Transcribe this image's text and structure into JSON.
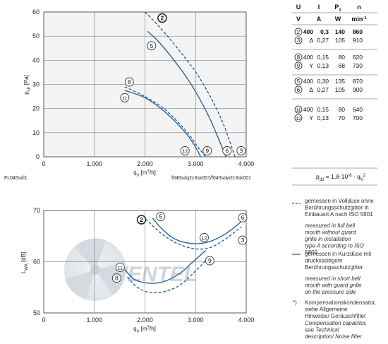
{
  "table": {
    "headers": [
      "U",
      "I",
      "P1",
      "n"
    ],
    "header_sub": [
      "1"
    ],
    "units": [
      "V",
      "A",
      "W",
      "min-1"
    ],
    "rows": [
      {
        "ids": [
          "2",
          "3"
        ],
        "U": [
          "400",
          "Δ"
        ],
        "I": [
          "0,3",
          "0,27"
        ],
        "P": [
          "140",
          "105"
        ],
        "n": [
          "860",
          "910"
        ],
        "bold_first": true
      },
      {
        "ids": [
          "8",
          "9"
        ],
        "U": [
          "400",
          "Y"
        ],
        "I": [
          "0,15",
          "0,13"
        ],
        "P": [
          "80",
          "68"
        ],
        "n": [
          "620",
          "730"
        ],
        "bold_first": false
      },
      {
        "ids": [
          "5",
          "6"
        ],
        "U": [
          "400",
          "Δ"
        ],
        "I": [
          "0,30",
          "0,27"
        ],
        "P": [
          "135",
          "105"
        ],
        "n": [
          "870",
          "900"
        ],
        "bold_first": false
      },
      {
        "ids": [
          "11",
          "12"
        ],
        "U": [
          "400",
          "Y"
        ],
        "I": [
          "0,15",
          "0,13"
        ],
        "P": [
          "80",
          "70"
        ],
        "n": [
          "640",
          "700"
        ],
        "bold_first": false
      }
    ],
    "formula": "pd2 = 1,8·10-6 · qv2"
  },
  "top_chart": {
    "codes_left": "FL045sdi1",
    "codes_right": "f045sdq2c3sk001/f045sdw2c3sk001"
  },
  "legend": {
    "dashed_de": "gemessen in Volldüse ohne Berührungsschutzgitter in Einbauart A nach ISO 5801",
    "dashed_en": "measured in full bell mouth without guard grille in installation type A according to ISO 5801",
    "solid_de": "gemessen in Kurzdüse mit drucksseitigem Berührungsschutzgitter",
    "solid_en": "measured in short bell mouth with guard grille on the pressure side",
    "note_mark": "*)",
    "note_de": "Kompensationskondensator, siehe Allgemeine Hinweise/ Geräuschfilter",
    "note_en": "Compensation capacitor, see Technical description/ Noise filter"
  },
  "chart_data": [
    {
      "type": "line",
      "name": "pressure",
      "xlabel": "qv [m3/h]",
      "ylabel": "psF [Pa]",
      "xlim": [
        0,
        4000
      ],
      "ylim": [
        0,
        60
      ],
      "xticks": [
        "0",
        "1.000",
        "2.000",
        "3.000",
        "4.000"
      ],
      "yticks": [
        "0",
        "10",
        "20",
        "30",
        "40",
        "50",
        "60"
      ],
      "grid": true,
      "series": [
        {
          "name": "2",
          "style": "dashed",
          "x": [
            2000,
            2300,
            2700,
            3100,
            3500,
            3780
          ],
          "y": [
            60,
            53.5,
            43.5,
            32,
            16,
            0
          ]
        },
        {
          "name": "5",
          "style": "solid",
          "x": [
            2050,
            2300,
            2700,
            3000,
            3300,
            3600
          ],
          "y": [
            52,
            47,
            36.5,
            27,
            15,
            0
          ]
        },
        {
          "name": "8",
          "style": "dashed",
          "x": [
            1600,
            2000,
            2400,
            2800,
            3050,
            3200
          ],
          "y": [
            29,
            25,
            19.5,
            11,
            4,
            0
          ]
        },
        {
          "name": "11",
          "style": "solid",
          "x": [
            1600,
            2000,
            2400,
            2800,
            3000,
            3100
          ],
          "y": [
            27.5,
            24.5,
            18.5,
            10,
            4,
            0
          ]
        }
      ],
      "labels": [
        {
          "id": "2",
          "x": 2340,
          "y": 57.5,
          "bold": true
        },
        {
          "id": "5",
          "x": 2130,
          "y": 46
        },
        {
          "id": "8",
          "x": 1690,
          "y": 31
        },
        {
          "id": "11",
          "x": 1600,
          "y": 24.5
        },
        {
          "id": "12",
          "x": 2790,
          "y": 2.5
        },
        {
          "id": "9",
          "x": 3230,
          "y": 2.5
        },
        {
          "id": "6",
          "x": 3620,
          "y": 2.5
        },
        {
          "id": "3",
          "x": 3900,
          "y": 2.5
        }
      ]
    },
    {
      "type": "line",
      "name": "sound",
      "xlabel": "qv [m3/h]",
      "ylabel": "LwA [dB]",
      "xlim": [
        0,
        4000
      ],
      "ylim": [
        50,
        70
      ],
      "xticks": [
        "0",
        "1.000",
        "2.000",
        "3.000",
        "4.000"
      ],
      "yticks": [
        "50",
        "60",
        "70"
      ],
      "grid": true,
      "series": [
        {
          "name": "2",
          "style": "dashed",
          "x": [
            1950,
            2100,
            2300,
            2500,
            2700,
            3000,
            3300,
            3600,
            3900
          ],
          "y": [
            69,
            67.5,
            65.7,
            64.3,
            63.3,
            62.5,
            62.8,
            64.5,
            66.8
          ]
        },
        {
          "name": "5",
          "style": "solid",
          "x": [
            2150,
            2300,
            2500,
            2700,
            3000,
            3300,
            3600,
            3900
          ],
          "y": [
            68.5,
            66.8,
            65,
            64,
            63.5,
            64,
            65.5,
            67.8
          ]
        },
        {
          "name": "8",
          "style": "dashed",
          "x": [
            1650,
            1850,
            2100,
            2400,
            2700,
            3000,
            3200
          ],
          "y": [
            57,
            55,
            54,
            54.2,
            55.5,
            58.2,
            60.2
          ]
        },
        {
          "name": "11",
          "style": "solid",
          "x": [
            1600,
            1800,
            2100,
            2400,
            2700,
            2950,
            3200
          ],
          "y": [
            58.5,
            56.5,
            55.8,
            56.2,
            57.8,
            60,
            62.2
          ]
        }
      ],
      "labels": [
        {
          "id": "2",
          "x": 1930,
          "y": 68.2,
          "bold": true
        },
        {
          "id": "5",
          "x": 2310,
          "y": 68.8
        },
        {
          "id": "6",
          "x": 3930,
          "y": 68.6
        },
        {
          "id": "12",
          "x": 3170,
          "y": 64.7
        },
        {
          "id": "3",
          "x": 3930,
          "y": 64.2
        },
        {
          "id": "9",
          "x": 3280,
          "y": 60.2
        },
        {
          "id": "11",
          "x": 1510,
          "y": 58.9
        },
        {
          "id": "8",
          "x": 1440,
          "y": 56.8
        }
      ]
    }
  ]
}
